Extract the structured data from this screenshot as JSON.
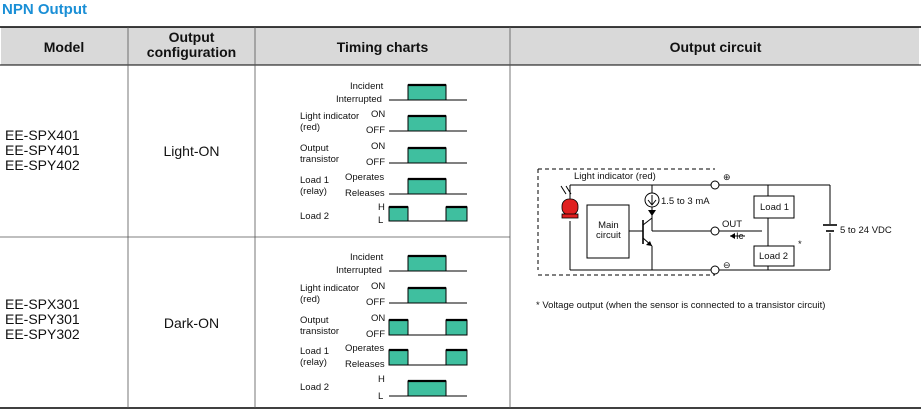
{
  "title": "NPN Output",
  "headers": {
    "model": "Model",
    "config_line1": "Output",
    "config_line2": "configuration",
    "timing": "Timing charts",
    "circuit": "Output circuit"
  },
  "rows": [
    {
      "models": [
        "EE-SPX401",
        "EE-SPY401",
        "EE-SPY402"
      ],
      "config": "Light-ON"
    },
    {
      "models": [
        "EE-SPX301",
        "EE-SPY301",
        "EE-SPY302"
      ],
      "config": "Dark-ON"
    }
  ],
  "timing_labels": {
    "incident": "Incident",
    "interrupted": "Interrupted",
    "light_indicator": "Light indicator",
    "red": "(red)",
    "on": "ON",
    "off": "OFF",
    "output": "Output",
    "transistor": "transistor",
    "load1": "Load 1",
    "relay": "(relay)",
    "operates": "Operates",
    "releases": "Releases",
    "load2": "Load 2",
    "h": "H",
    "l": "L"
  },
  "circuit": {
    "light_indicator": "Light indicator (red)",
    "current": "1.5 to 3 mA",
    "main1": "Main",
    "main2": "circuit",
    "out": "OUT",
    "ic": "Ic",
    "load1": "Load 1",
    "load2": "Load 2",
    "asterisk": "*",
    "supply": "5 to 24 VDC",
    "plus": "⊕",
    "minus": "⊖",
    "note": "* Voltage output (when the sensor is connected to a transistor circuit)"
  },
  "colors": {
    "title": "#1a8fd6",
    "header_bg": "#d9d9d9",
    "pulse": "#3fbf9f",
    "led": "#e02020"
  }
}
